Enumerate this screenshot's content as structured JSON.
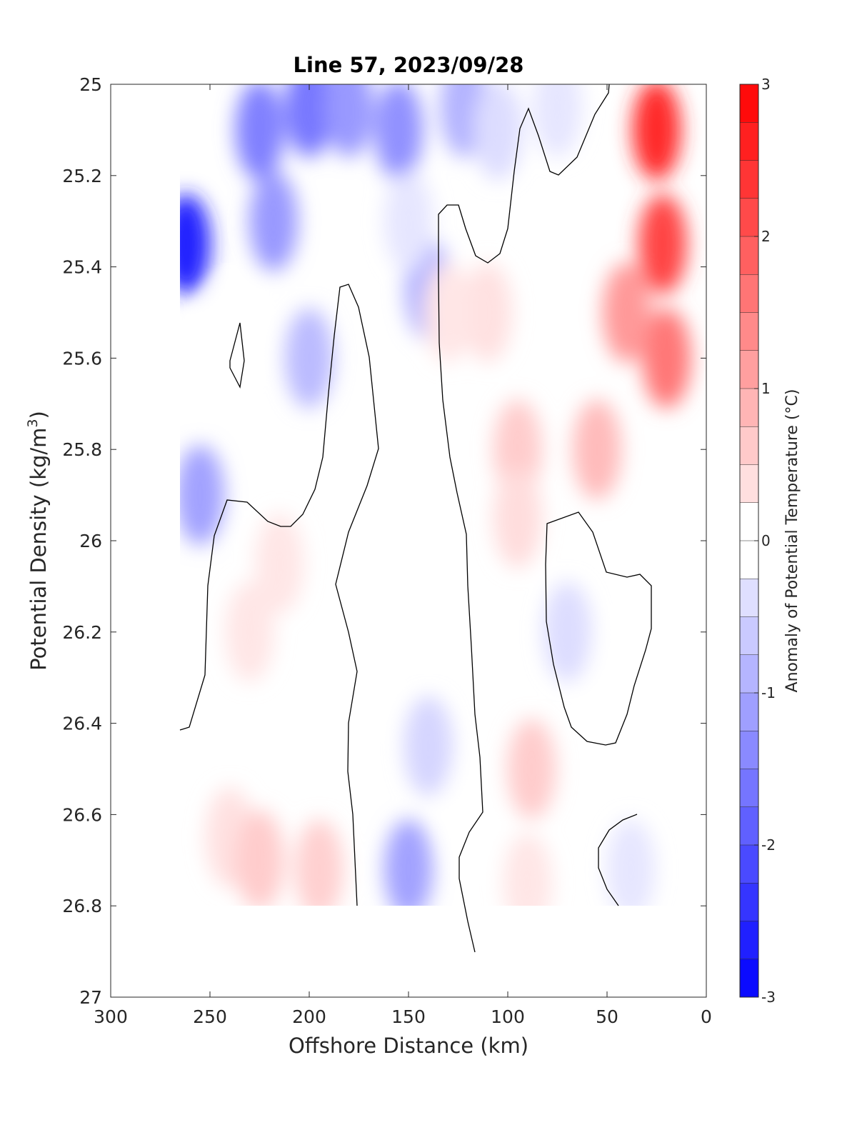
{
  "chart_data": {
    "type": "heatmap",
    "subtype": "filled-contour",
    "title": "Line 57, 2023/09/28",
    "xlabel": "Offshore Distance (km)",
    "ylabel": "Potential Density (kg/m",
    "ylabel_sup": "3",
    "ylabel_end": ")",
    "xlim": [
      300,
      0
    ],
    "x_reversed": true,
    "ylim": [
      25,
      27
    ],
    "y_reversed": true,
    "xticks": [
      "300",
      "250",
      "200",
      "150",
      "100",
      "50",
      "0"
    ],
    "yticks": [
      "25",
      "25.2",
      "25.4",
      "25.6",
      "25.8",
      "26",
      "26.2",
      "26.4",
      "26.6",
      "26.8",
      "27"
    ],
    "colorbar": {
      "label": "Anomaly of Potential Temperature (°C)",
      "range": [
        -3,
        3
      ],
      "ticks": [
        "-3",
        "-2",
        "-1",
        "0",
        "1",
        "2",
        "3"
      ],
      "levels": 24,
      "cold_color": "#0000ff",
      "warm_color": "#ff0000",
      "zero_color": "#ffffff"
    },
    "zero_contour_color": "#000000",
    "features": [
      {
        "x": 262,
        "y": 25.35,
        "value": -2.6
      },
      {
        "x": 225,
        "y": 25.1,
        "value": -1.5
      },
      {
        "x": 218,
        "y": 25.3,
        "value": -1.2
      },
      {
        "x": 200,
        "y": 25.05,
        "value": -1.6
      },
      {
        "x": 180,
        "y": 25.05,
        "value": -1.2
      },
      {
        "x": 155,
        "y": 25.1,
        "value": -1.3
      },
      {
        "x": 140,
        "y": 25.45,
        "value": -0.9
      },
      {
        "x": 255,
        "y": 25.9,
        "value": -1.1
      },
      {
        "x": 200,
        "y": 25.6,
        "value": -0.8
      },
      {
        "x": 122,
        "y": 25.05,
        "value": -0.9
      },
      {
        "x": 105,
        "y": 25.1,
        "value": -0.4
      },
      {
        "x": 75,
        "y": 25.05,
        "value": -0.3
      },
      {
        "x": 240,
        "y": 25.55,
        "value": 0.1
      },
      {
        "x": 170,
        "y": 25.9,
        "value": 0.1
      },
      {
        "x": 150,
        "y": 26.72,
        "value": -1.1
      },
      {
        "x": 140,
        "y": 26.45,
        "value": -0.5
      },
      {
        "x": 70,
        "y": 26.2,
        "value": -0.4
      },
      {
        "x": 38,
        "y": 26.72,
        "value": -0.3
      },
      {
        "x": 22,
        "y": 25.35,
        "value": 2.2
      },
      {
        "x": 25,
        "y": 25.1,
        "value": 2.5
      },
      {
        "x": 20,
        "y": 25.6,
        "value": 1.6
      },
      {
        "x": 40,
        "y": 25.5,
        "value": 1.2
      },
      {
        "x": 55,
        "y": 25.8,
        "value": 0.8
      },
      {
        "x": 95,
        "y": 25.8,
        "value": 0.6
      },
      {
        "x": 110,
        "y": 25.5,
        "value": 0.35
      },
      {
        "x": 95,
        "y": 25.95,
        "value": 0.4
      },
      {
        "x": 88,
        "y": 26.5,
        "value": 0.6
      },
      {
        "x": 90,
        "y": 26.75,
        "value": 0.3
      },
      {
        "x": 230,
        "y": 26.2,
        "value": 0.3
      },
      {
        "x": 215,
        "y": 26.05,
        "value": 0.3
      },
      {
        "x": 240,
        "y": 26.65,
        "value": 0.35
      },
      {
        "x": 225,
        "y": 26.7,
        "value": 0.6
      },
      {
        "x": 195,
        "y": 26.72,
        "value": 0.55
      },
      {
        "x": 130,
        "y": 25.5,
        "value": 0.3
      },
      {
        "x": 175,
        "y": 26.3,
        "value": 0.0
      },
      {
        "x": 120,
        "y": 26.6,
        "value": 0.0
      },
      {
        "x": 45,
        "y": 26.3,
        "value": 0.0
      },
      {
        "x": 10,
        "y": 26.4,
        "value": 0.0
      },
      {
        "x": 150,
        "y": 25.3,
        "value": -0.3
      }
    ]
  }
}
